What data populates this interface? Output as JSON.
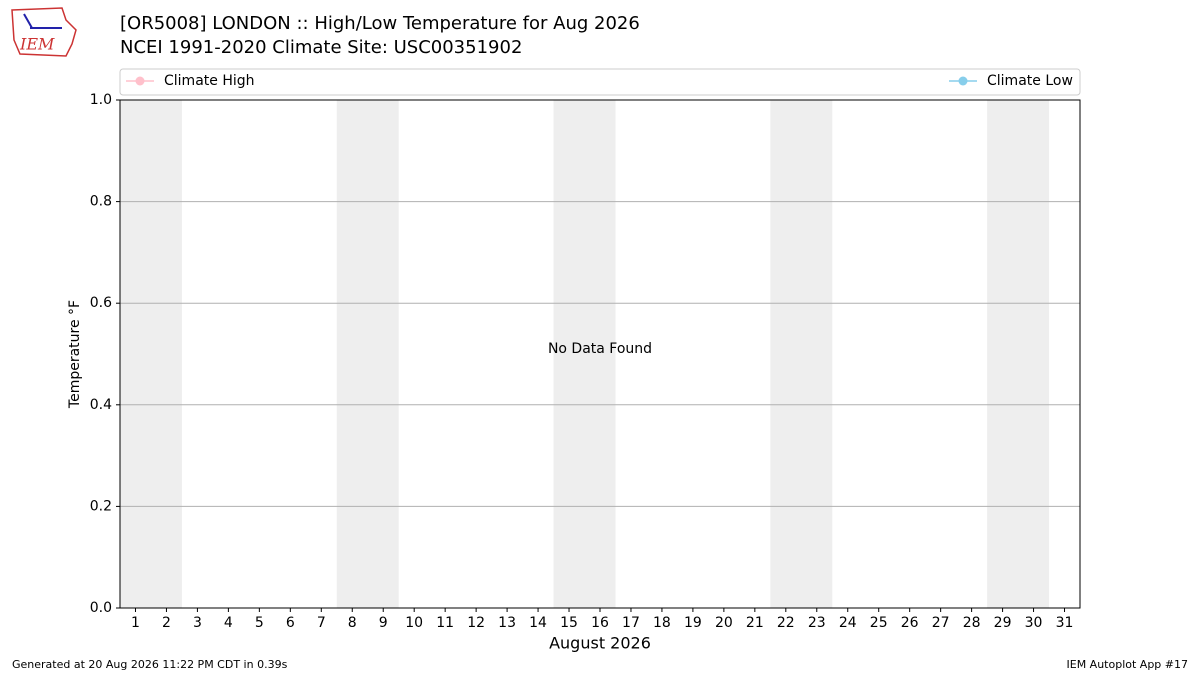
{
  "chart_data": {
    "type": "line",
    "title": "[OR5008] LONDON :: High/Low Temperature for Aug 2026",
    "subtitle": "NCEI 1991-2020 Climate Site: USC00351902",
    "x_label": "August 2026",
    "y_label": "Temperature °F",
    "annotation": "No Data Found",
    "x": [
      1,
      2,
      3,
      4,
      5,
      6,
      7,
      8,
      9,
      10,
      11,
      12,
      13,
      14,
      15,
      16,
      17,
      18,
      19,
      20,
      21,
      22,
      23,
      24,
      25,
      26,
      27,
      28,
      29,
      30,
      31
    ],
    "series": [
      {
        "name": "Climate High",
        "color": "#ffc0cb",
        "values": [
          null,
          null,
          null,
          null,
          null,
          null,
          null,
          null,
          null,
          null,
          null,
          null,
          null,
          null,
          null,
          null,
          null,
          null,
          null,
          null,
          null,
          null,
          null,
          null,
          null,
          null,
          null,
          null,
          null,
          null,
          null
        ]
      },
      {
        "name": "Climate Low",
        "color": "#87ceeb",
        "values": [
          null,
          null,
          null,
          null,
          null,
          null,
          null,
          null,
          null,
          null,
          null,
          null,
          null,
          null,
          null,
          null,
          null,
          null,
          null,
          null,
          null,
          null,
          null,
          null,
          null,
          null,
          null,
          null,
          null,
          null,
          null
        ]
      }
    ],
    "xlim": [
      0.5,
      31.5
    ],
    "xticks": [
      1,
      2,
      3,
      4,
      5,
      6,
      7,
      8,
      9,
      10,
      11,
      12,
      13,
      14,
      15,
      16,
      17,
      18,
      19,
      20,
      21,
      22,
      23,
      24,
      25,
      26,
      27,
      28,
      29,
      30,
      31
    ],
    "ylim": [
      0,
      1
    ],
    "yticks": [
      {
        "value": 0,
        "label": "0.0"
      },
      0.2,
      0.4,
      0.6,
      0.8,
      {
        "value": 1,
        "label": "1.0"
      }
    ],
    "grid": true,
    "shaded_days": [
      [
        1,
        2
      ],
      [
        8,
        9
      ],
      [
        15,
        16
      ],
      [
        22,
        23
      ],
      [
        29,
        30
      ]
    ],
    "shade_color": "#eeeeee"
  },
  "logo": "IEM",
  "footer_left": "Generated at 20 Aug 2026 11:22 PM CDT in 0.39s",
  "footer_right": "IEM Autoplot App #17"
}
